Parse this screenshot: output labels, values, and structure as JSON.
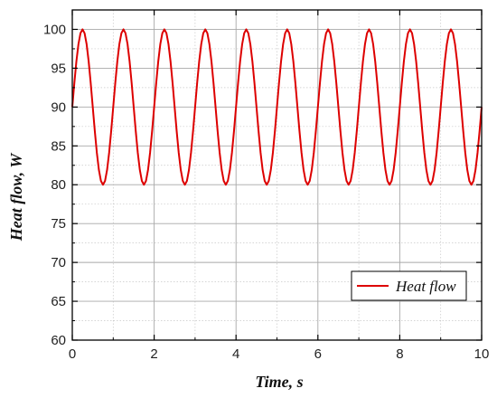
{
  "chart_data": {
    "type": "line",
    "title": "",
    "xlabel": "Time, s",
    "ylabel": "Heat flow, W",
    "xlim": [
      0,
      10
    ],
    "ylim": [
      60,
      102.5
    ],
    "x_ticks": [
      0,
      2,
      4,
      6,
      8,
      10
    ],
    "x_tick_labels": [
      "0",
      "2",
      "4",
      "6",
      "8",
      "10"
    ],
    "y_ticks": [
      60,
      65,
      70,
      75,
      80,
      85,
      90,
      95,
      100
    ],
    "y_tick_labels": [
      "60",
      "65",
      "70",
      "75",
      "80",
      "85",
      "90",
      "95",
      "100"
    ],
    "grid": true,
    "legend": {
      "position": "bottom-right"
    },
    "series": [
      {
        "name": "Heat flow",
        "color": "#dd0000",
        "x": [
          0,
          0.05,
          0.1,
          0.15,
          0.2,
          0.25,
          0.3,
          0.35,
          0.4,
          0.45,
          0.5,
          0.55,
          0.6,
          0.65,
          0.7,
          0.75,
          0.8,
          0.85,
          0.9,
          0.95,
          1.0,
          1.05,
          1.1,
          1.15,
          1.2,
          1.25,
          1.3,
          1.35,
          1.4,
          1.45,
          1.5,
          1.55,
          1.6,
          1.65,
          1.7,
          1.75,
          1.8,
          1.85,
          1.9,
          1.95,
          2.0,
          2.05,
          2.1,
          2.15,
          2.2,
          2.25,
          2.3,
          2.35,
          2.4,
          2.45,
          2.5,
          2.55,
          2.6,
          2.65,
          2.7,
          2.75,
          2.8,
          2.85,
          2.9,
          2.95,
          3.0,
          3.05,
          3.1,
          3.15,
          3.2,
          3.25,
          3.3,
          3.35,
          3.4,
          3.45,
          3.5,
          3.55,
          3.6,
          3.65,
          3.7,
          3.75,
          3.8,
          3.85,
          3.9,
          3.95,
          4.0,
          4.05,
          4.1,
          4.15,
          4.2,
          4.25,
          4.3,
          4.35,
          4.4,
          4.45,
          4.5,
          4.55,
          4.6,
          4.65,
          4.7,
          4.75,
          4.8,
          4.85,
          4.9,
          4.95,
          5.0,
          5.05,
          5.1,
          5.15,
          5.2,
          5.25,
          5.3,
          5.35,
          5.4,
          5.45,
          5.5,
          5.55,
          5.6,
          5.65,
          5.7,
          5.75,
          5.8,
          5.85,
          5.9,
          5.95,
          6.0,
          6.05,
          6.1,
          6.15,
          6.2,
          6.25,
          6.3,
          6.35,
          6.4,
          6.45,
          6.5,
          6.55,
          6.6,
          6.65,
          6.7,
          6.75,
          6.8,
          6.85,
          6.9,
          6.95,
          7.0,
          7.05,
          7.1,
          7.15,
          7.2,
          7.25,
          7.3,
          7.35,
          7.4,
          7.45,
          7.5,
          7.55,
          7.6,
          7.65,
          7.7,
          7.75,
          7.8,
          7.85,
          7.9,
          7.95,
          8.0,
          8.05,
          8.1,
          8.15,
          8.2,
          8.25,
          8.3,
          8.35,
          8.4,
          8.45,
          8.5,
          8.55,
          8.6,
          8.65,
          8.7,
          8.75,
          8.8,
          8.85,
          8.9,
          8.95,
          9.0,
          9.05,
          9.1,
          9.15,
          9.2,
          9.25,
          9.3,
          9.35,
          9.4,
          9.45,
          9.5,
          9.55,
          9.6,
          9.65,
          9.7,
          9.75,
          9.8,
          9.85,
          9.9,
          9.95,
          10.0
        ],
        "y": [
          90.0,
          93.09,
          95.88,
          98.09,
          99.51,
          100.0,
          99.51,
          98.09,
          95.88,
          93.09,
          90.0,
          86.91,
          84.12,
          81.91,
          80.49,
          80.0,
          80.49,
          81.91,
          84.12,
          86.91,
          90.0,
          93.09,
          95.88,
          98.09,
          99.51,
          100.0,
          99.51,
          98.09,
          95.88,
          93.09,
          90.0,
          86.91,
          84.12,
          81.91,
          80.49,
          80.0,
          80.49,
          81.91,
          84.12,
          86.91,
          90.0,
          93.09,
          95.88,
          98.09,
          99.51,
          100.0,
          99.51,
          98.09,
          95.88,
          93.09,
          90.0,
          86.91,
          84.12,
          81.91,
          80.49,
          80.0,
          80.49,
          81.91,
          84.12,
          86.91,
          90.0,
          93.09,
          95.88,
          98.09,
          99.51,
          100.0,
          99.51,
          98.09,
          95.88,
          93.09,
          90.0,
          86.91,
          84.12,
          81.91,
          80.49,
          80.0,
          80.49,
          81.91,
          84.12,
          86.91,
          90.0,
          93.09,
          95.88,
          98.09,
          99.51,
          100.0,
          99.51,
          98.09,
          95.88,
          93.09,
          90.0,
          86.91,
          84.12,
          81.91,
          80.49,
          80.0,
          80.49,
          81.91,
          84.12,
          86.91,
          90.0,
          93.09,
          95.88,
          98.09,
          99.51,
          100.0,
          99.51,
          98.09,
          95.88,
          93.09,
          90.0,
          86.91,
          84.12,
          81.91,
          80.49,
          80.0,
          80.49,
          81.91,
          84.12,
          86.91,
          90.0,
          93.09,
          95.88,
          98.09,
          99.51,
          100.0,
          99.51,
          98.09,
          95.88,
          93.09,
          90.0,
          86.91,
          84.12,
          81.91,
          80.49,
          80.0,
          80.49,
          81.91,
          84.12,
          86.91,
          90.0,
          93.09,
          95.88,
          98.09,
          99.51,
          100.0,
          99.51,
          98.09,
          95.88,
          93.09,
          90.0,
          86.91,
          84.12,
          81.91,
          80.49,
          80.0,
          80.49,
          81.91,
          84.12,
          86.91,
          90.0,
          93.09,
          95.88,
          98.09,
          99.51,
          100.0,
          99.51,
          98.09,
          95.88,
          93.09,
          90.0,
          86.91,
          84.12,
          81.91,
          80.49,
          80.0,
          80.49,
          81.91,
          84.12,
          86.91,
          90.0,
          93.09,
          95.88,
          98.09,
          99.51,
          100.0,
          99.51,
          98.09,
          95.88,
          93.09,
          90.0,
          86.91,
          84.12,
          81.91,
          80.49,
          80.0,
          80.49,
          81.91,
          84.12,
          86.91,
          90.0
        ]
      }
    ]
  }
}
